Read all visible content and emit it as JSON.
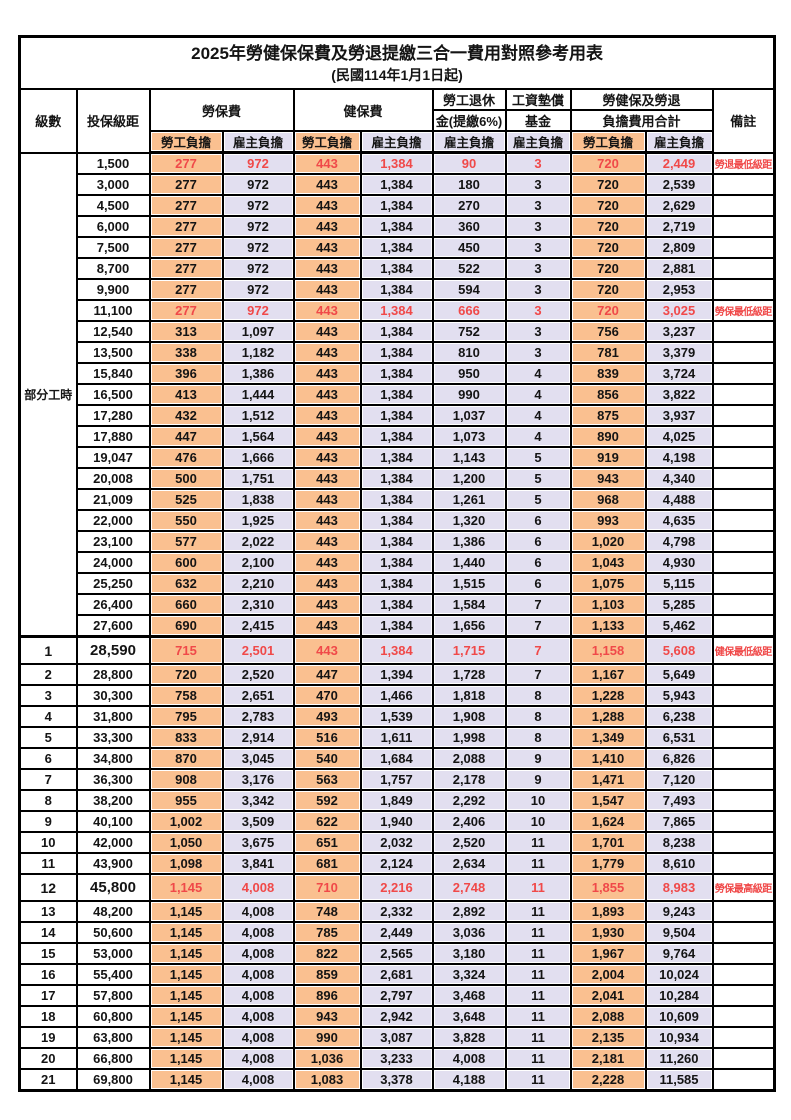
{
  "title": "2025年勞健保保費及勞退提繳三合一費用對照參考用表",
  "subtitle": "(民國114年1月1日起)",
  "header": {
    "level": "級數",
    "bracket": "投保級距",
    "labor": "勞保費",
    "health": "健保費",
    "pension_line1": "勞工退休",
    "pension_line2": "金(提繳6%)",
    "wage_fund_line1": "工資墊償",
    "wage_fund_line2": "基金",
    "total_line1": "勞健保及勞退",
    "total_line2": "負擔費用合計",
    "note": "備註",
    "employee": "勞工負擔",
    "employer": "雇主負擔"
  },
  "part_time_label": "部分工時",
  "colors": {
    "employee_bg": "#FAC090",
    "employer_bg": "#E2DFF0",
    "highlight_red": "#F04949",
    "border": "#000000"
  },
  "rows": [
    {
      "level": "",
      "bracket": "1,500",
      "fees": [
        "277",
        "972",
        "443",
        "1,384",
        "90",
        "3",
        "720",
        "2,449"
      ],
      "note": "勞退最低級距",
      "highlight": true
    },
    {
      "level": "",
      "bracket": "3,000",
      "fees": [
        "277",
        "972",
        "443",
        "1,384",
        "180",
        "3",
        "720",
        "2,539"
      ]
    },
    {
      "level": "",
      "bracket": "4,500",
      "fees": [
        "277",
        "972",
        "443",
        "1,384",
        "270",
        "3",
        "720",
        "2,629"
      ]
    },
    {
      "level": "",
      "bracket": "6,000",
      "fees": [
        "277",
        "972",
        "443",
        "1,384",
        "360",
        "3",
        "720",
        "2,719"
      ]
    },
    {
      "level": "",
      "bracket": "7,500",
      "fees": [
        "277",
        "972",
        "443",
        "1,384",
        "450",
        "3",
        "720",
        "2,809"
      ]
    },
    {
      "level": "",
      "bracket": "8,700",
      "fees": [
        "277",
        "972",
        "443",
        "1,384",
        "522",
        "3",
        "720",
        "2,881"
      ]
    },
    {
      "level": "",
      "bracket": "9,900",
      "fees": [
        "277",
        "972",
        "443",
        "1,384",
        "594",
        "3",
        "720",
        "2,953"
      ]
    },
    {
      "level": "",
      "bracket": "11,100",
      "fees": [
        "277",
        "972",
        "443",
        "1,384",
        "666",
        "3",
        "720",
        "3,025"
      ],
      "note": "勞保最低級距",
      "highlight": true
    },
    {
      "level": "",
      "bracket": "12,540",
      "fees": [
        "313",
        "1,097",
        "443",
        "1,384",
        "752",
        "3",
        "756",
        "3,237"
      ]
    },
    {
      "level": "",
      "bracket": "13,500",
      "fees": [
        "338",
        "1,182",
        "443",
        "1,384",
        "810",
        "3",
        "781",
        "3,379"
      ]
    },
    {
      "level": "",
      "bracket": "15,840",
      "fees": [
        "396",
        "1,386",
        "443",
        "1,384",
        "950",
        "4",
        "839",
        "3,724"
      ]
    },
    {
      "level": "",
      "bracket": "16,500",
      "fees": [
        "413",
        "1,444",
        "443",
        "1,384",
        "990",
        "4",
        "856",
        "3,822"
      ]
    },
    {
      "level": "",
      "bracket": "17,280",
      "fees": [
        "432",
        "1,512",
        "443",
        "1,384",
        "1,037",
        "4",
        "875",
        "3,937"
      ]
    },
    {
      "level": "",
      "bracket": "17,880",
      "fees": [
        "447",
        "1,564",
        "443",
        "1,384",
        "1,073",
        "4",
        "890",
        "4,025"
      ]
    },
    {
      "level": "",
      "bracket": "19,047",
      "fees": [
        "476",
        "1,666",
        "443",
        "1,384",
        "1,143",
        "5",
        "919",
        "4,198"
      ]
    },
    {
      "level": "",
      "bracket": "20,008",
      "fees": [
        "500",
        "1,751",
        "443",
        "1,384",
        "1,200",
        "5",
        "943",
        "4,340"
      ]
    },
    {
      "level": "",
      "bracket": "21,009",
      "fees": [
        "525",
        "1,838",
        "443",
        "1,384",
        "1,261",
        "5",
        "968",
        "4,488"
      ]
    },
    {
      "level": "",
      "bracket": "22,000",
      "fees": [
        "550",
        "1,925",
        "443",
        "1,384",
        "1,320",
        "6",
        "993",
        "4,635"
      ]
    },
    {
      "level": "",
      "bracket": "23,100",
      "fees": [
        "577",
        "2,022",
        "443",
        "1,384",
        "1,386",
        "6",
        "1,020",
        "4,798"
      ]
    },
    {
      "level": "",
      "bracket": "24,000",
      "fees": [
        "600",
        "2,100",
        "443",
        "1,384",
        "1,440",
        "6",
        "1,043",
        "4,930"
      ]
    },
    {
      "level": "",
      "bracket": "25,250",
      "fees": [
        "632",
        "2,210",
        "443",
        "1,384",
        "1,515",
        "6",
        "1,075",
        "5,115"
      ]
    },
    {
      "level": "",
      "bracket": "26,400",
      "fees": [
        "660",
        "2,310",
        "443",
        "1,384",
        "1,584",
        "7",
        "1,103",
        "5,285"
      ]
    },
    {
      "level": "",
      "bracket": "27,600",
      "fees": [
        "690",
        "2,415",
        "443",
        "1,384",
        "1,656",
        "7",
        "1,133",
        "5,462"
      ]
    },
    {
      "level": "1",
      "bracket": "28,590",
      "fees": [
        "715",
        "2,501",
        "443",
        "1,384",
        "1,715",
        "7",
        "1,158",
        "5,608"
      ],
      "note": "健保最低級距",
      "highlight": true,
      "emphasis": true
    },
    {
      "level": "2",
      "bracket": "28,800",
      "fees": [
        "720",
        "2,520",
        "447",
        "1,394",
        "1,728",
        "7",
        "1,167",
        "5,649"
      ]
    },
    {
      "level": "3",
      "bracket": "30,300",
      "fees": [
        "758",
        "2,651",
        "470",
        "1,466",
        "1,818",
        "8",
        "1,228",
        "5,943"
      ]
    },
    {
      "level": "4",
      "bracket": "31,800",
      "fees": [
        "795",
        "2,783",
        "493",
        "1,539",
        "1,908",
        "8",
        "1,288",
        "6,238"
      ]
    },
    {
      "level": "5",
      "bracket": "33,300",
      "fees": [
        "833",
        "2,914",
        "516",
        "1,611",
        "1,998",
        "8",
        "1,349",
        "6,531"
      ]
    },
    {
      "level": "6",
      "bracket": "34,800",
      "fees": [
        "870",
        "3,045",
        "540",
        "1,684",
        "2,088",
        "9",
        "1,410",
        "6,826"
      ]
    },
    {
      "level": "7",
      "bracket": "36,300",
      "fees": [
        "908",
        "3,176",
        "563",
        "1,757",
        "2,178",
        "9",
        "1,471",
        "7,120"
      ]
    },
    {
      "level": "8",
      "bracket": "38,200",
      "fees": [
        "955",
        "3,342",
        "592",
        "1,849",
        "2,292",
        "10",
        "1,547",
        "7,493"
      ]
    },
    {
      "level": "9",
      "bracket": "40,100",
      "fees": [
        "1,002",
        "3,509",
        "622",
        "1,940",
        "2,406",
        "10",
        "1,624",
        "7,865"
      ]
    },
    {
      "level": "10",
      "bracket": "42,000",
      "fees": [
        "1,050",
        "3,675",
        "651",
        "2,032",
        "2,520",
        "11",
        "1,701",
        "8,238"
      ]
    },
    {
      "level": "11",
      "bracket": "43,900",
      "fees": [
        "1,098",
        "3,841",
        "681",
        "2,124",
        "2,634",
        "11",
        "1,779",
        "8,610"
      ]
    },
    {
      "level": "12",
      "bracket": "45,800",
      "fees": [
        "1,145",
        "4,008",
        "710",
        "2,216",
        "2,748",
        "11",
        "1,855",
        "8,983"
      ],
      "note": "勞保最高級距",
      "highlight": true,
      "emphasis": true
    },
    {
      "level": "13",
      "bracket": "48,200",
      "fees": [
        "1,145",
        "4,008",
        "748",
        "2,332",
        "2,892",
        "11",
        "1,893",
        "9,243"
      ]
    },
    {
      "level": "14",
      "bracket": "50,600",
      "fees": [
        "1,145",
        "4,008",
        "785",
        "2,449",
        "3,036",
        "11",
        "1,930",
        "9,504"
      ]
    },
    {
      "level": "15",
      "bracket": "53,000",
      "fees": [
        "1,145",
        "4,008",
        "822",
        "2,565",
        "3,180",
        "11",
        "1,967",
        "9,764"
      ]
    },
    {
      "level": "16",
      "bracket": "55,400",
      "fees": [
        "1,145",
        "4,008",
        "859",
        "2,681",
        "3,324",
        "11",
        "2,004",
        "10,024"
      ]
    },
    {
      "level": "17",
      "bracket": "57,800",
      "fees": [
        "1,145",
        "4,008",
        "896",
        "2,797",
        "3,468",
        "11",
        "2,041",
        "10,284"
      ]
    },
    {
      "level": "18",
      "bracket": "60,800",
      "fees": [
        "1,145",
        "4,008",
        "943",
        "2,942",
        "3,648",
        "11",
        "2,088",
        "10,609"
      ]
    },
    {
      "level": "19",
      "bracket": "63,800",
      "fees": [
        "1,145",
        "4,008",
        "990",
        "3,087",
        "3,828",
        "11",
        "2,135",
        "10,934"
      ]
    },
    {
      "level": "20",
      "bracket": "66,800",
      "fees": [
        "1,145",
        "4,008",
        "1,036",
        "3,233",
        "4,008",
        "11",
        "2,181",
        "11,260"
      ]
    },
    {
      "level": "21",
      "bracket": "69,800",
      "fees": [
        "1,145",
        "4,008",
        "1,083",
        "3,378",
        "4,188",
        "11",
        "2,228",
        "11,585"
      ]
    }
  ]
}
